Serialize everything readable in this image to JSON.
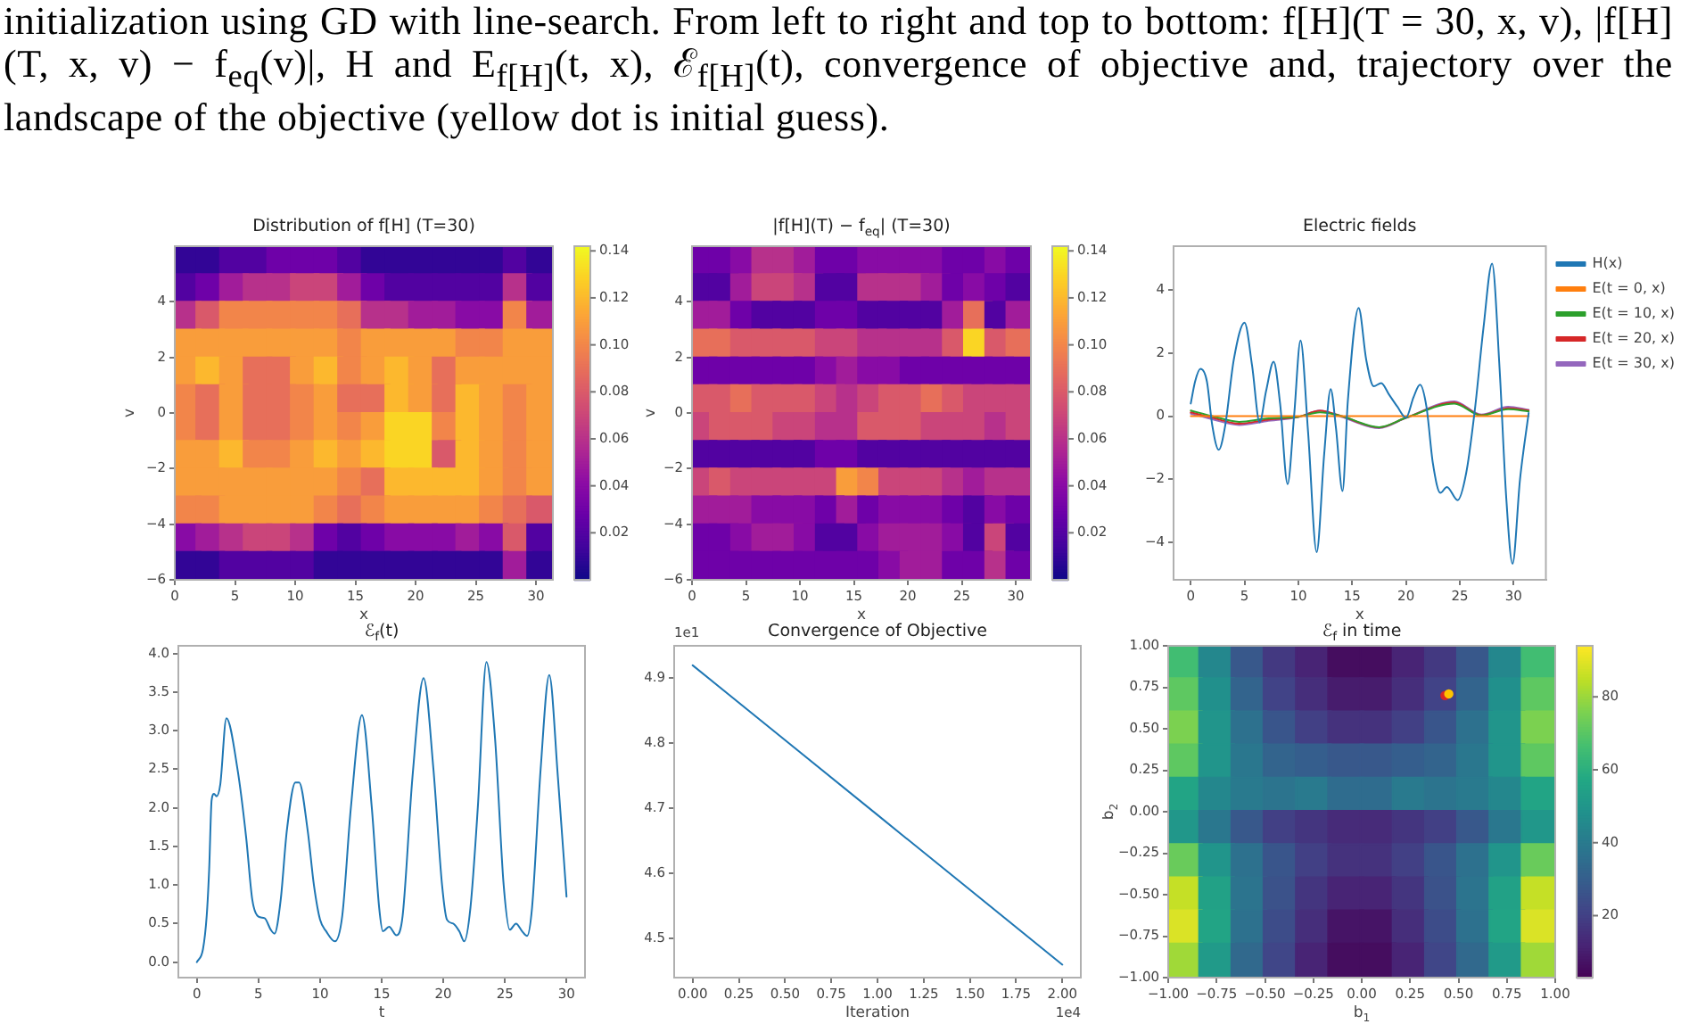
{
  "chart_data": [
    {
      "type": "other",
      "annotations": [
        "initialization using GD with line-search. From left to right and top to bottom: f[H](T = 30, x, v), |f[H](T, x, v) − f$_{eq}$(v)|, H and E$_{f[H]}$(t, x), ℰ$_{f[H]}$(t), convergence of objective and, trajectory over the landscape of the objective (yellow dot is initial guess)."
      ]
    },
    {
      "type": "scatter",
      "title": "Distribution of f[H] (T=30)",
      "xlabel": "x",
      "ylabel": "v",
      "marker": "square",
      "xlim": [
        0,
        31.4
      ],
      "ylim": [
        -6,
        6
      ],
      "xticks": [
        0,
        5,
        10,
        15,
        20,
        25,
        30
      ],
      "yticks": [
        {
          "value": -6,
          "label": "−6"
        },
        {
          "value": -4,
          "label": "−4"
        },
        {
          "value": -2,
          "label": "−2"
        },
        0,
        2,
        4
      ],
      "clim": [
        0,
        0.142
      ],
      "cticks": [
        0.02,
        0.04,
        0.06,
        0.08,
        {
          "value": 0.1,
          "label": "0.10"
        },
        0.12,
        0.14
      ],
      "x": [
        0.98,
        2.94,
        4.91,
        6.87,
        8.83,
        10.79,
        12.76,
        14.72,
        16.68,
        18.64,
        20.61,
        22.57,
        24.53,
        26.49,
        28.46,
        30.42,
        0.98,
        2.94,
        4.91,
        6.87,
        8.83,
        10.79,
        12.76,
        14.72,
        16.68,
        18.64,
        20.61,
        22.57,
        24.53,
        26.49,
        28.46,
        30.42,
        0.98,
        2.94,
        4.91,
        6.87,
        8.83,
        10.79,
        12.76,
        14.72,
        16.68,
        18.64,
        20.61,
        22.57,
        24.53,
        26.49,
        28.46,
        30.42,
        0.98,
        2.94,
        4.91,
        6.87,
        8.83,
        10.79,
        12.76,
        14.72,
        16.68,
        18.64,
        20.61,
        22.57,
        24.53,
        26.49,
        28.46,
        30.42,
        0.98,
        2.94,
        4.91,
        6.87,
        8.83,
        10.79,
        12.76,
        14.72,
        16.68,
        18.64,
        20.61,
        22.57,
        24.53,
        26.49,
        28.46,
        30.42,
        0.98,
        2.94,
        4.91,
        6.87,
        8.83,
        10.79,
        12.76,
        14.72,
        16.68,
        18.64,
        20.61,
        22.57,
        24.53,
        26.49,
        28.46,
        30.42,
        0.98,
        2.94,
        4.91,
        6.87,
        8.83,
        10.79,
        12.76,
        14.72,
        16.68,
        18.64,
        20.61,
        22.57,
        24.53,
        26.49,
        28.46,
        30.42,
        0.98,
        2.94,
        4.91,
        6.87,
        8.83,
        10.79,
        12.76,
        14.72,
        16.68,
        18.64,
        20.61,
        22.57,
        24.53,
        26.49,
        28.46,
        30.42,
        0.98,
        2.94,
        4.91,
        6.87,
        8.83,
        10.79,
        12.76,
        14.72,
        16.68,
        18.64,
        20.61,
        22.57,
        24.53,
        26.49,
        28.46,
        30.42,
        0.98,
        2.94,
        4.91,
        6.87,
        8.83,
        10.79,
        12.76,
        14.72,
        16.68,
        18.64,
        20.61,
        22.57,
        24.53,
        26.49,
        28.46,
        30.42,
        0.98,
        2.94,
        4.91,
        6.87,
        8.83,
        10.79,
        12.76,
        14.72,
        16.68,
        18.64,
        20.61,
        22.57,
        24.53,
        26.49,
        28.46,
        30.42,
        0.98,
        2.94,
        4.91,
        6.87,
        8.83,
        10.79,
        12.76,
        14.72,
        16.68,
        18.64,
        20.61,
        22.57,
        24.53,
        26.49,
        28.46,
        30.42
      ],
      "values": [
        5.5,
        5.5,
        5.5,
        5.5,
        5.5,
        5.5,
        5.5,
        5.5,
        5.5,
        5.5,
        5.5,
        5.5,
        5.5,
        5.5,
        5.5,
        5.5,
        4.5,
        4.5,
        4.5,
        4.5,
        4.5,
        4.5,
        4.5,
        4.5,
        4.5,
        4.5,
        4.5,
        4.5,
        4.5,
        4.5,
        4.5,
        4.5,
        3.5,
        3.5,
        3.5,
        3.5,
        3.5,
        3.5,
        3.5,
        3.5,
        3.5,
        3.5,
        3.5,
        3.5,
        3.5,
        3.5,
        3.5,
        3.5,
        2.5,
        2.5,
        2.5,
        2.5,
        2.5,
        2.5,
        2.5,
        2.5,
        2.5,
        2.5,
        2.5,
        2.5,
        2.5,
        2.5,
        2.5,
        2.5,
        1.5,
        1.5,
        1.5,
        1.5,
        1.5,
        1.5,
        1.5,
        1.5,
        1.5,
        1.5,
        1.5,
        1.5,
        1.5,
        1.5,
        1.5,
        1.5,
        0.5,
        0.5,
        0.5,
        0.5,
        0.5,
        0.5,
        0.5,
        0.5,
        0.5,
        0.5,
        0.5,
        0.5,
        0.5,
        0.5,
        0.5,
        0.5,
        -0.5,
        -0.5,
        -0.5,
        -0.5,
        -0.5,
        -0.5,
        -0.5,
        -0.5,
        -0.5,
        -0.5,
        -0.5,
        -0.5,
        -0.5,
        -0.5,
        -0.5,
        -0.5,
        -1.5,
        -1.5,
        -1.5,
        -1.5,
        -1.5,
        -1.5,
        -1.5,
        -1.5,
        -1.5,
        -1.5,
        -1.5,
        -1.5,
        -1.5,
        -1.5,
        -1.5,
        -1.5,
        -2.5,
        -2.5,
        -2.5,
        -2.5,
        -2.5,
        -2.5,
        -2.5,
        -2.5,
        -2.5,
        -2.5,
        -2.5,
        -2.5,
        -2.5,
        -2.5,
        -2.5,
        -2.5,
        -3.5,
        -3.5,
        -3.5,
        -3.5,
        -3.5,
        -3.5,
        -3.5,
        -3.5,
        -3.5,
        -3.5,
        -3.5,
        -3.5,
        -3.5,
        -3.5,
        -3.5,
        -3.5,
        -4.5,
        -4.5,
        -4.5,
        -4.5,
        -4.5,
        -4.5,
        -4.5,
        -4.5,
        -4.5,
        -4.5,
        -4.5,
        -4.5,
        -4.5,
        -4.5,
        -4.5,
        -4.5,
        -5.5,
        -5.5,
        -5.5,
        -5.5,
        -5.5,
        -5.5,
        -5.5,
        -5.5,
        -5.5,
        -5.5,
        -5.5,
        -5.5,
        -5.5,
        -5.5,
        -5.5,
        -5.5
      ],
      "cvalues": [
        0.01,
        0.01,
        0.02,
        0.02,
        0.03,
        0.03,
        0.03,
        0.02,
        0.01,
        0.01,
        0.01,
        0.01,
        0.01,
        0.01,
        0.02,
        0.01,
        0.02,
        0.03,
        0.05,
        0.06,
        0.06,
        0.07,
        0.07,
        0.05,
        0.03,
        0.02,
        0.02,
        0.02,
        0.02,
        0.02,
        0.06,
        0.02,
        0.06,
        0.08,
        0.1,
        0.1,
        0.1,
        0.1,
        0.1,
        0.09,
        0.06,
        0.06,
        0.05,
        0.05,
        0.04,
        0.04,
        0.1,
        0.05,
        0.11,
        0.11,
        0.11,
        0.11,
        0.11,
        0.11,
        0.11,
        0.1,
        0.11,
        0.11,
        0.11,
        0.11,
        0.1,
        0.1,
        0.11,
        0.11,
        0.11,
        0.12,
        0.11,
        0.09,
        0.09,
        0.11,
        0.12,
        0.1,
        0.11,
        0.12,
        0.11,
        0.09,
        0.11,
        0.11,
        0.11,
        0.11,
        0.1,
        0.09,
        0.11,
        0.09,
        0.09,
        0.1,
        0.11,
        0.09,
        0.09,
        0.12,
        0.11,
        0.09,
        0.12,
        0.11,
        0.1,
        0.11,
        0.1,
        0.09,
        0.11,
        0.09,
        0.09,
        0.1,
        0.11,
        0.1,
        0.11,
        0.13,
        0.13,
        0.1,
        0.12,
        0.11,
        0.1,
        0.11,
        0.11,
        0.11,
        0.12,
        0.1,
        0.1,
        0.11,
        0.12,
        0.11,
        0.12,
        0.13,
        0.13,
        0.08,
        0.12,
        0.11,
        0.1,
        0.11,
        0.11,
        0.11,
        0.11,
        0.11,
        0.11,
        0.11,
        0.11,
        0.1,
        0.09,
        0.12,
        0.12,
        0.12,
        0.12,
        0.11,
        0.1,
        0.11,
        0.1,
        0.1,
        0.11,
        0.11,
        0.11,
        0.11,
        0.1,
        0.09,
        0.1,
        0.11,
        0.11,
        0.11,
        0.11,
        0.1,
        0.09,
        0.08,
        0.04,
        0.05,
        0.06,
        0.07,
        0.07,
        0.06,
        0.03,
        0.02,
        0.03,
        0.04,
        0.04,
        0.04,
        0.05,
        0.04,
        0.08,
        0.02,
        0.01,
        0.01,
        0.02,
        0.02,
        0.02,
        0.02,
        0.01,
        0.01,
        0.01,
        0.01,
        0.01,
        0.01,
        0.01,
        0.01,
        0.05,
        0.01
      ]
    },
    {
      "type": "scatter",
      "title": "|f[H](T) − f$_{eq}$| (T=30)",
      "xlabel": "x",
      "ylabel": "v",
      "marker": "square",
      "xlim": [
        0,
        31.4
      ],
      "ylim": [
        -6,
        6
      ],
      "xticks": [
        0,
        5,
        10,
        15,
        20,
        25,
        30
      ],
      "yticks": [
        {
          "value": -6,
          "label": "−6"
        },
        {
          "value": -4,
          "label": "−4"
        },
        {
          "value": -2,
          "label": "−2"
        },
        0,
        2,
        4
      ],
      "clim": [
        0,
        0.142
      ],
      "cticks": [
        0.02,
        0.04,
        0.06,
        0.08,
        {
          "value": 0.1,
          "label": "0.10"
        },
        0.12,
        0.14
      ],
      "x": [
        0.98,
        2.94,
        4.91,
        6.87,
        8.83,
        10.79,
        12.76,
        14.72,
        16.68,
        18.64,
        20.61,
        22.57,
        24.53,
        26.49,
        28.46,
        30.42,
        0.98,
        2.94,
        4.91,
        6.87,
        8.83,
        10.79,
        12.76,
        14.72,
        16.68,
        18.64,
        20.61,
        22.57,
        24.53,
        26.49,
        28.46,
        30.42,
        0.98,
        2.94,
        4.91,
        6.87,
        8.83,
        10.79,
        12.76,
        14.72,
        16.68,
        18.64,
        20.61,
        22.57,
        24.53,
        26.49,
        28.46,
        30.42,
        0.98,
        2.94,
        4.91,
        6.87,
        8.83,
        10.79,
        12.76,
        14.72,
        16.68,
        18.64,
        20.61,
        22.57,
        24.53,
        26.49,
        28.46,
        30.42,
        0.98,
        2.94,
        4.91,
        6.87,
        8.83,
        10.79,
        12.76,
        14.72,
        16.68,
        18.64,
        20.61,
        22.57,
        24.53,
        26.49,
        28.46,
        30.42,
        0.98,
        2.94,
        4.91,
        6.87,
        8.83,
        10.79,
        12.76,
        14.72,
        16.68,
        18.64,
        20.61,
        22.57,
        24.53,
        26.49,
        28.46,
        30.42,
        0.98,
        2.94,
        4.91,
        6.87,
        8.83,
        10.79,
        12.76,
        14.72,
        16.68,
        18.64,
        20.61,
        22.57,
        24.53,
        26.49,
        28.46,
        30.42,
        0.98,
        2.94,
        4.91,
        6.87,
        8.83,
        10.79,
        12.76,
        14.72,
        16.68,
        18.64,
        20.61,
        22.57,
        24.53,
        26.49,
        28.46,
        30.42,
        0.98,
        2.94,
        4.91,
        6.87,
        8.83,
        10.79,
        12.76,
        14.72,
        16.68,
        18.64,
        20.61,
        22.57,
        24.53,
        26.49,
        28.46,
        30.42,
        0.98,
        2.94,
        4.91,
        6.87,
        8.83,
        10.79,
        12.76,
        14.72,
        16.68,
        18.64,
        20.61,
        22.57,
        24.53,
        26.49,
        28.46,
        30.42,
        0.98,
        2.94,
        4.91,
        6.87,
        8.83,
        10.79,
        12.76,
        14.72,
        16.68,
        18.64,
        20.61,
        22.57,
        24.53,
        26.49,
        28.46,
        30.42,
        0.98,
        2.94,
        4.91,
        6.87,
        8.83,
        10.79,
        12.76,
        14.72,
        16.68,
        18.64,
        20.61,
        22.57,
        24.53,
        26.49,
        28.46,
        30.42
      ],
      "values": [
        5.5,
        5.5,
        5.5,
        5.5,
        5.5,
        5.5,
        5.5,
        5.5,
        5.5,
        5.5,
        5.5,
        5.5,
        5.5,
        5.5,
        5.5,
        5.5,
        4.5,
        4.5,
        4.5,
        4.5,
        4.5,
        4.5,
        4.5,
        4.5,
        4.5,
        4.5,
        4.5,
        4.5,
        4.5,
        4.5,
        4.5,
        4.5,
        3.5,
        3.5,
        3.5,
        3.5,
        3.5,
        3.5,
        3.5,
        3.5,
        3.5,
        3.5,
        3.5,
        3.5,
        3.5,
        3.5,
        3.5,
        3.5,
        2.5,
        2.5,
        2.5,
        2.5,
        2.5,
        2.5,
        2.5,
        2.5,
        2.5,
        2.5,
        2.5,
        2.5,
        2.5,
        2.5,
        2.5,
        2.5,
        1.5,
        1.5,
        1.5,
        1.5,
        1.5,
        1.5,
        1.5,
        1.5,
        1.5,
        1.5,
        1.5,
        1.5,
        1.5,
        1.5,
        1.5,
        1.5,
        0.5,
        0.5,
        0.5,
        0.5,
        0.5,
        0.5,
        0.5,
        0.5,
        0.5,
        0.5,
        0.5,
        0.5,
        0.5,
        0.5,
        0.5,
        0.5,
        -0.5,
        -0.5,
        -0.5,
        -0.5,
        -0.5,
        -0.5,
        -0.5,
        -0.5,
        -0.5,
        -0.5,
        -0.5,
        -0.5,
        -0.5,
        -0.5,
        -0.5,
        -0.5,
        -1.5,
        -1.5,
        -1.5,
        -1.5,
        -1.5,
        -1.5,
        -1.5,
        -1.5,
        -1.5,
        -1.5,
        -1.5,
        -1.5,
        -1.5,
        -1.5,
        -1.5,
        -1.5,
        -2.5,
        -2.5,
        -2.5,
        -2.5,
        -2.5,
        -2.5,
        -2.5,
        -2.5,
        -2.5,
        -2.5,
        -2.5,
        -2.5,
        -2.5,
        -2.5,
        -2.5,
        -2.5,
        -3.5,
        -3.5,
        -3.5,
        -3.5,
        -3.5,
        -3.5,
        -3.5,
        -3.5,
        -3.5,
        -3.5,
        -3.5,
        -3.5,
        -3.5,
        -3.5,
        -3.5,
        -3.5,
        -4.5,
        -4.5,
        -4.5,
        -4.5,
        -4.5,
        -4.5,
        -4.5,
        -4.5,
        -4.5,
        -4.5,
        -4.5,
        -4.5,
        -4.5,
        -4.5,
        -4.5,
        -4.5,
        -5.5,
        -5.5,
        -5.5,
        -5.5,
        -5.5,
        -5.5,
        -5.5,
        -5.5,
        -5.5,
        -5.5,
        -5.5,
        -5.5,
        -5.5,
        -5.5,
        -5.5,
        -5.5
      ],
      "cvalues": [
        0.03,
        0.03,
        0.04,
        0.06,
        0.06,
        0.05,
        0.03,
        0.03,
        0.04,
        0.04,
        0.04,
        0.04,
        0.03,
        0.03,
        0.04,
        0.03,
        0.02,
        0.02,
        0.05,
        0.07,
        0.07,
        0.06,
        0.02,
        0.02,
        0.06,
        0.06,
        0.06,
        0.05,
        0.03,
        0.04,
        0.03,
        0.02,
        0.05,
        0.05,
        0.03,
        0.02,
        0.02,
        0.02,
        0.03,
        0.03,
        0.02,
        0.02,
        0.02,
        0.02,
        0.05,
        0.09,
        0.02,
        0.05,
        0.09,
        0.09,
        0.08,
        0.08,
        0.08,
        0.08,
        0.07,
        0.07,
        0.06,
        0.06,
        0.06,
        0.06,
        0.08,
        0.13,
        0.08,
        0.09,
        0.03,
        0.03,
        0.03,
        0.03,
        0.03,
        0.03,
        0.04,
        0.05,
        0.04,
        0.04,
        0.03,
        0.03,
        0.03,
        0.03,
        0.03,
        0.03,
        0.08,
        0.08,
        0.09,
        0.08,
        0.08,
        0.08,
        0.07,
        0.06,
        0.07,
        0.08,
        0.08,
        0.09,
        0.08,
        0.07,
        0.07,
        0.07,
        0.07,
        0.08,
        0.08,
        0.08,
        0.07,
        0.07,
        0.06,
        0.06,
        0.08,
        0.08,
        0.08,
        0.07,
        0.07,
        0.07,
        0.06,
        0.07,
        0.02,
        0.02,
        0.02,
        0.02,
        0.02,
        0.02,
        0.03,
        0.03,
        0.02,
        0.02,
        0.02,
        0.02,
        0.02,
        0.02,
        0.02,
        0.02,
        0.07,
        0.08,
        0.07,
        0.07,
        0.07,
        0.07,
        0.07,
        0.11,
        0.1,
        0.07,
        0.07,
        0.07,
        0.06,
        0.05,
        0.06,
        0.06,
        0.05,
        0.05,
        0.05,
        0.04,
        0.04,
        0.04,
        0.03,
        0.05,
        0.03,
        0.04,
        0.04,
        0.04,
        0.03,
        0.02,
        0.04,
        0.03,
        0.03,
        0.03,
        0.04,
        0.05,
        0.05,
        0.04,
        0.02,
        0.02,
        0.04,
        0.05,
        0.05,
        0.05,
        0.04,
        0.02,
        0.07,
        0.02,
        0.03,
        0.03,
        0.03,
        0.03,
        0.03,
        0.03,
        0.03,
        0.03,
        0.03,
        0.04,
        0.05,
        0.05,
        0.03,
        0.03,
        0.06,
        0.03
      ]
    },
    {
      "type": "line",
      "title": "Electric fields",
      "xlabel": "x",
      "legend": "right",
      "xlim": [
        -1.6,
        33
      ],
      "ylim": [
        -5.2,
        5.4
      ],
      "xticks": [
        0,
        5,
        10,
        15,
        20,
        25,
        30
      ],
      "yticks": [
        {
          "value": -4,
          "label": "−4"
        },
        {
          "value": -2,
          "label": "−2"
        },
        0,
        2,
        4
      ],
      "series": [
        {
          "name": "H(x)",
          "color": "#1f77b4",
          "x": [
            0,
            0.4,
            0.9,
            1.5,
            2.0,
            2.6,
            3.2,
            4.0,
            5.0,
            5.7,
            6.4,
            7.0,
            7.7,
            8.3,
            9.0,
            9.6,
            10.2,
            10.9,
            11.7,
            12.4,
            13.0,
            13.5,
            14.1,
            14.6,
            15.6,
            16.3,
            17.0,
            17.7,
            18.4,
            19.2,
            20.0,
            20.7,
            21.3,
            21.9,
            22.5,
            23.2,
            23.8,
            24.8,
            25.6,
            26.4,
            27.2,
            28.0,
            28.7,
            29.3,
            29.9,
            30.6,
            31.4
          ],
          "values": [
            0.4,
            1.1,
            1.5,
            1.1,
            -0.3,
            -1.07,
            -0.3,
            1.8,
            2.97,
            1.6,
            -0.2,
            0.8,
            1.73,
            0.4,
            -2.16,
            0.0,
            2.4,
            -0.5,
            -4.32,
            -1.2,
            0.86,
            -0.4,
            -2.38,
            0.5,
            3.44,
            1.8,
            0.95,
            1.05,
            0.7,
            0.3,
            -0.05,
            0.6,
            1.0,
            0.3,
            -1.5,
            -2.44,
            -2.25,
            -2.67,
            -1.8,
            0.2,
            2.8,
            4.85,
            1.5,
            -2.5,
            -4.69,
            -2.0,
            0.1
          ]
        },
        {
          "name": "E(t = 0, x)",
          "color": "#ff7f0e",
          "x": [
            0,
            31.4
          ],
          "values": [
            0,
            0
          ]
        },
        {
          "name": "E(t = 10, x)",
          "color": "#2ca02c",
          "x": [
            0,
            2,
            4.5,
            7,
            10,
            12,
            14,
            17.5,
            20,
            24.5,
            27,
            29.5,
            31.4
          ],
          "values": [
            0.18,
            0.0,
            -0.18,
            -0.08,
            -0.02,
            0.12,
            0.0,
            -0.35,
            -0.05,
            0.4,
            0.02,
            0.22,
            0.15
          ]
        },
        {
          "name": "E(t = 20, x)",
          "color": "#d62728",
          "x": [
            0,
            2,
            4.5,
            7,
            10,
            12,
            14,
            17.5,
            20,
            24.5,
            27,
            29.5,
            31.4
          ],
          "values": [
            0.12,
            -0.05,
            -0.24,
            -0.12,
            -0.02,
            0.17,
            0.0,
            -0.36,
            -0.05,
            0.43,
            0.03,
            0.25,
            0.18
          ]
        },
        {
          "name": "E(t = 30, x)",
          "color": "#9467bd",
          "x": [
            0,
            2,
            4.5,
            7,
            10,
            12,
            14,
            17.5,
            20,
            24.5,
            27,
            29.5,
            31.4
          ],
          "values": [
            0.08,
            -0.1,
            -0.28,
            -0.16,
            -0.03,
            0.18,
            -0.02,
            -0.38,
            -0.06,
            0.47,
            0.05,
            0.3,
            0.2
          ]
        }
      ]
    },
    {
      "type": "line",
      "title": "ℰ$_{f}$(t)",
      "xlabel": "t",
      "color": "#1f77b4",
      "x": [
        0,
        0.5,
        0.8,
        1.0,
        1.2,
        1.4,
        1.6,
        1.9,
        2.4,
        3.3,
        4.0,
        4.5,
        5.0,
        5.5,
        6.0,
        6.3,
        6.8,
        7.3,
        8.0,
        8.3,
        9.0,
        9.5,
        10.0,
        10.5,
        11.2,
        11.8,
        12.5,
        13.4,
        14.2,
        14.8,
        15.1,
        15.6,
        16.2,
        16.7,
        17.5,
        18.4,
        19.2,
        19.9,
        20.3,
        20.8,
        21.3,
        21.7,
        22.2,
        22.8,
        23.5,
        24.2,
        24.9,
        25.4,
        25.9,
        26.4,
        26.8,
        27.2,
        27.9,
        28.6,
        29.3,
        30.0
      ],
      "values": [
        0.0,
        0.17,
        0.6,
        1.2,
        2.1,
        2.18,
        2.15,
        2.3,
        3.16,
        2.5,
        1.62,
        0.81,
        0.59,
        0.57,
        0.42,
        0.37,
        0.8,
        1.7,
        2.33,
        2.33,
        1.7,
        1.0,
        0.55,
        0.4,
        0.27,
        0.6,
        2.0,
        3.2,
        2.0,
        0.7,
        0.4,
        0.46,
        0.35,
        0.6,
        2.4,
        3.68,
        2.5,
        1.0,
        0.55,
        0.5,
        0.4,
        0.27,
        0.7,
        2.0,
        3.89,
        2.9,
        1.0,
        0.42,
        0.5,
        0.4,
        0.34,
        0.7,
        2.5,
        3.72,
        2.4,
        0.85
      ],
      "xlim": [
        -1.5,
        31.5
      ],
      "ylim": [
        -0.2,
        4.1
      ],
      "xticks": [
        0,
        5,
        10,
        15,
        20,
        25,
        30
      ],
      "yticks": [
        {
          "value": 0,
          "label": "0.0"
        },
        0.5,
        {
          "value": 1,
          "label": "1.0"
        },
        1.5,
        {
          "value": 2,
          "label": "2.0"
        },
        2.5,
        {
          "value": 3,
          "label": "3.0"
        },
        3.5,
        {
          "value": 4,
          "label": "4.0"
        }
      ]
    },
    {
      "type": "line",
      "title": "Convergence of Objective",
      "xlabel": "Iteration",
      "color": "#1f77b4",
      "x": [
        0,
        1,
        2
      ],
      "values": [
        4.92,
        4.69,
        4.46
      ],
      "xlim": [
        -0.1,
        2.1
      ],
      "ylim": [
        4.44,
        4.95
      ],
      "xticks": [
        {
          "value": 0,
          "label": "0.00"
        },
        0.25,
        {
          "value": 0.5,
          "label": "0.50"
        },
        0.75,
        {
          "value": 1,
          "label": "1.00"
        },
        1.25,
        {
          "value": 1.5,
          "label": "1.50"
        },
        1.75,
        {
          "value": 2,
          "label": "2.00"
        }
      ],
      "yticks": [
        4.5,
        4.6,
        4.7,
        4.8,
        4.9
      ],
      "annotations": [
        "1e1",
        "1e4"
      ]
    },
    {
      "type": "scatter",
      "title": "ℰ$_{f}$ in time",
      "xlabel": "b$_{1}$",
      "ylabel": "b$_{2}$",
      "marker": "square",
      "xlim": [
        -1,
        1
      ],
      "ylim": [
        -1,
        1
      ],
      "xticks": [
        {
          "value": -1,
          "label": "−1.00"
        },
        {
          "value": -0.75,
          "label": "−0.75"
        },
        {
          "value": -0.5,
          "label": "−0.50"
        },
        {
          "value": -0.25,
          "label": "−0.25"
        },
        {
          "value": 0,
          "label": "0.00"
        },
        0.25,
        {
          "value": 0.5,
          "label": "0.50"
        },
        0.75,
        {
          "value": 1,
          "label": "1.00"
        }
      ],
      "yticks": [
        {
          "value": -1,
          "label": "−1.00"
        },
        {
          "value": -0.75,
          "label": "−0.75"
        },
        {
          "value": -0.5,
          "label": "−0.50"
        },
        {
          "value": -0.25,
          "label": "−0.25"
        },
        {
          "value": 0,
          "label": "0.00"
        },
        0.25,
        {
          "value": 0.5,
          "label": "0.50"
        },
        0.75,
        {
          "value": 1,
          "label": "1.00"
        }
      ],
      "clim": [
        3,
        94
      ],
      "cticks": [
        20,
        40,
        60,
        80
      ],
      "x": [
        -0.917,
        -0.75,
        -0.583,
        -0.417,
        -0.25,
        -0.083,
        0.083,
        0.25,
        0.417,
        0.583,
        0.75,
        0.917,
        -0.917,
        -0.75,
        -0.583,
        -0.417,
        -0.25,
        -0.083,
        0.083,
        0.25,
        0.417,
        0.583,
        0.75,
        0.917,
        -0.917,
        -0.75,
        -0.583,
        -0.417,
        -0.25,
        -0.083,
        0.083,
        0.25,
        0.417,
        0.583,
        0.75,
        0.917,
        -0.917,
        -0.75,
        -0.583,
        -0.417,
        -0.25,
        -0.083,
        0.083,
        0.25,
        0.417,
        0.583,
        0.75,
        0.917,
        -0.917,
        -0.75,
        -0.583,
        -0.417,
        -0.25,
        -0.083,
        0.083,
        0.25,
        0.417,
        0.583,
        0.75,
        0.917,
        -0.917,
        -0.75,
        -0.583,
        -0.417,
        -0.25,
        -0.083,
        0.083,
        0.25,
        0.417,
        0.583,
        0.75,
        0.917,
        -0.917,
        -0.75,
        -0.583,
        -0.417,
        -0.25,
        -0.083,
        0.083,
        0.25,
        0.417,
        0.583,
        0.75,
        0.917,
        -0.917,
        -0.75,
        -0.583,
        -0.417,
        -0.25,
        -0.083,
        0.083,
        0.25,
        0.417,
        0.583,
        0.75,
        0.917,
        -0.917,
        -0.75,
        -0.583,
        -0.417,
        -0.25,
        -0.083,
        0.083,
        0.25,
        0.417,
        0.583,
        0.75,
        0.917,
        -0.917,
        -0.75,
        -0.583,
        -0.417,
        -0.25,
        -0.083,
        0.083,
        0.25,
        0.417,
        0.583,
        0.75,
        0.917
      ],
      "values": [
        0.9,
        0.9,
        0.9,
        0.9,
        0.9,
        0.9,
        0.9,
        0.9,
        0.9,
        0.9,
        0.9,
        0.9,
        0.7,
        0.7,
        0.7,
        0.7,
        0.7,
        0.7,
        0.7,
        0.7,
        0.7,
        0.7,
        0.7,
        0.7,
        0.5,
        0.5,
        0.5,
        0.5,
        0.5,
        0.5,
        0.5,
        0.5,
        0.5,
        0.5,
        0.5,
        0.5,
        0.3,
        0.3,
        0.3,
        0.3,
        0.3,
        0.3,
        0.3,
        0.3,
        0.3,
        0.3,
        0.3,
        0.3,
        0.1,
        0.1,
        0.1,
        0.1,
        0.1,
        0.1,
        0.1,
        0.1,
        0.1,
        0.1,
        0.1,
        0.1,
        -0.1,
        -0.1,
        -0.1,
        -0.1,
        -0.1,
        -0.1,
        -0.1,
        -0.1,
        -0.1,
        -0.1,
        -0.1,
        -0.1,
        -0.3,
        -0.3,
        -0.3,
        -0.3,
        -0.3,
        -0.3,
        -0.3,
        -0.3,
        -0.3,
        -0.3,
        -0.3,
        -0.3,
        -0.5,
        -0.5,
        -0.5,
        -0.5,
        -0.5,
        -0.5,
        -0.5,
        -0.5,
        -0.5,
        -0.5,
        -0.5,
        -0.5,
        -0.7,
        -0.7,
        -0.7,
        -0.7,
        -0.7,
        -0.7,
        -0.7,
        -0.7,
        -0.7,
        -0.7,
        -0.7,
        -0.7,
        -0.9,
        -0.9,
        -0.9,
        -0.9,
        -0.9,
        -0.9,
        -0.9,
        -0.9,
        -0.9,
        -0.9,
        -0.9,
        -0.9
      ],
      "cvalues": [
        66,
        45,
        28,
        18,
        12,
        6,
        6,
        12,
        18,
        28,
        45,
        66,
        71,
        48,
        32,
        21,
        15,
        10,
        10,
        15,
        21,
        32,
        48,
        71,
        76,
        50,
        37,
        27,
        20,
        16,
        16,
        20,
        27,
        37,
        50,
        76,
        71,
        50,
        39,
        32,
        30,
        28,
        28,
        30,
        32,
        39,
        50,
        71,
        56,
        45,
        40,
        38,
        40,
        35,
        35,
        40,
        38,
        40,
        45,
        56,
        51,
        39,
        28,
        20,
        17,
        14,
        14,
        17,
        20,
        28,
        39,
        51,
        73,
        50,
        37,
        27,
        20,
        16,
        16,
        20,
        27,
        37,
        50,
        73,
        86,
        55,
        38,
        26,
        17,
        12,
        12,
        17,
        26,
        38,
        55,
        86,
        89,
        56,
        37,
        24,
        15,
        8,
        8,
        15,
        24,
        37,
        56,
        89,
        81,
        52,
        34,
        22,
        12,
        6,
        6,
        12,
        22,
        34,
        52,
        81
      ],
      "colors": [
        "#41bd72",
        "#24888d",
        "#38588c",
        "#433981",
        "#482475",
        "#450d5f",
        "#450d5f",
        "#482475",
        "#433981",
        "#38588c",
        "#24888d",
        "#41bd72",
        "#5dc761",
        "#21908c",
        "#33648d",
        "#414387",
        "#462f7b",
        "#471c6d",
        "#471c6d",
        "#462f7b",
        "#414387",
        "#33648d",
        "#21908c",
        "#5dc761",
        "#7bd150",
        "#21958b",
        "#2d728e",
        "#39558b",
        "#424085",
        "#45327d",
        "#45327d",
        "#424085",
        "#39558b",
        "#2d728e",
        "#21958b",
        "#7bd150",
        "#5dc761",
        "#21958b",
        "#2a778e",
        "#33648d",
        "#355e8d",
        "#38588c",
        "#38588c",
        "#355e8d",
        "#33648d",
        "#2a778e",
        "#21958b",
        "#5dc761",
        "#22a485",
        "#24888d",
        "#297a8e",
        "#2c748e",
        "#297a8e",
        "#2f6c8e",
        "#2f6c8e",
        "#297a8e",
        "#2c748e",
        "#297a8e",
        "#24888d",
        "#22a485",
        "#21978a",
        "#2a778e",
        "#38588c",
        "#424085",
        "#44357f",
        "#472b79",
        "#472b79",
        "#44357f",
        "#424085",
        "#38588c",
        "#2a778e",
        "#21978a",
        "#69cb5b",
        "#21958b",
        "#2d728e",
        "#39558b",
        "#424085",
        "#45327d",
        "#45327d",
        "#424085",
        "#39558b",
        "#2d728e",
        "#21958b",
        "#69cb5b",
        "#c5e026",
        "#22a186",
        "#2c748e",
        "#3b528a",
        "#44357f",
        "#482475",
        "#482475",
        "#44357f",
        "#3b528a",
        "#2c748e",
        "#22a186",
        "#c5e026",
        "#dae326",
        "#22a485",
        "#2d728e",
        "#3d4c89",
        "#462f7b",
        "#461466",
        "#461466",
        "#462f7b",
        "#3d4c89",
        "#2d728e",
        "#22a485",
        "#dae326",
        "#a0d938",
        "#219a89",
        "#30698d",
        "#404688",
        "#482475",
        "#450d5f",
        "#450d5f",
        "#482475",
        "#404688",
        "#30698d",
        "#219a89",
        "#a0d938"
      ],
      "series": [
        {
          "marker": "circle",
          "x": [
            0.43,
            0.45
          ],
          "values": [
            0.7,
            0.71
          ],
          "colors": [
            "#d62728",
            "#ffc400"
          ]
        }
      ]
    }
  ]
}
